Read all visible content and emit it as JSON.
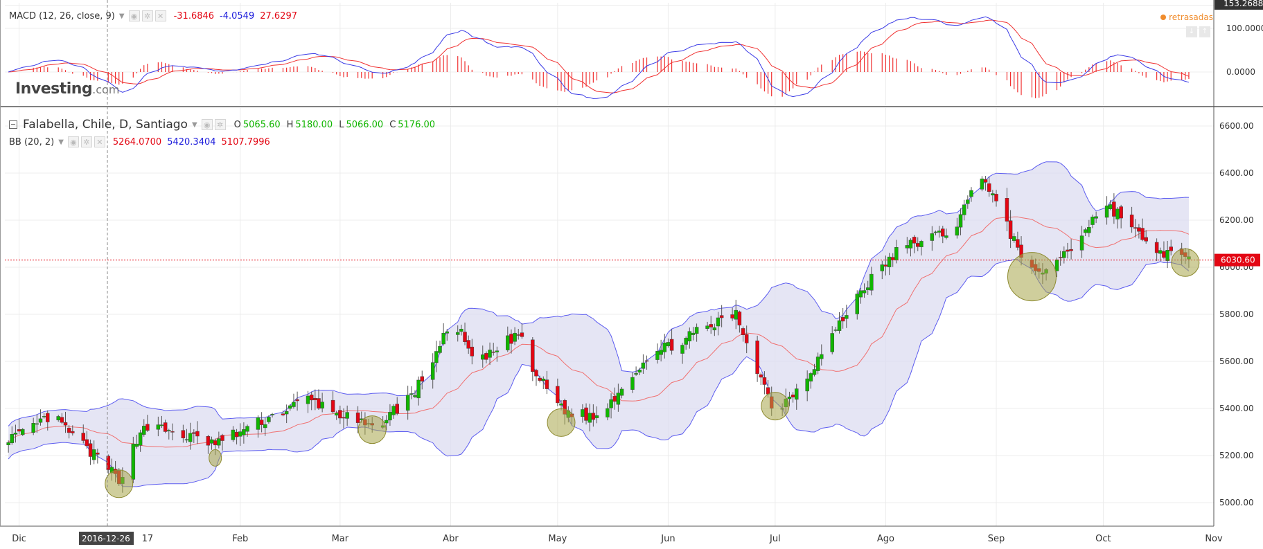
{
  "colors": {
    "up": "#11b600",
    "down": "#e30613",
    "bb_upper": "#5c5cf0",
    "bb_fill": "#dcdcf0",
    "bb_basis": "#f07070",
    "macd_line": "#3b3be6",
    "signal_line": "#f03030",
    "hist": "#f03030",
    "last_price": "#e30613",
    "grid": "#ececec"
  },
  "logo": {
    "brand": "Investing",
    "suffix": ".com"
  },
  "delayed_label": "retrasadas",
  "macd_legend": {
    "name": "MACD (12, 26, close, 9)",
    "values": [
      "-31.6846",
      "-4.0549",
      "27.6297"
    ]
  },
  "main_legend": {
    "symbol": "Falabella, Chile, D, Santiago",
    "ohlc": [
      {
        "label": "O",
        "value": "5065.60"
      },
      {
        "label": "H",
        "value": "5180.00"
      },
      {
        "label": "L",
        "value": "5066.00"
      },
      {
        "label": "C",
        "value": "5176.00"
      }
    ]
  },
  "bb_legend": {
    "name": "BB (20, 2)",
    "values": [
      "5264.0700",
      "5420.3404",
      "5107.7996"
    ]
  },
  "chart_data": {
    "type": "candlestick",
    "title": "Falabella, Chile, D, Santiago",
    "x_ticks": [
      "Dic",
      "2016-12-26",
      "17",
      "Feb",
      "Mar",
      "Abr",
      "May",
      "Jun",
      "Jul",
      "Ago",
      "Sep",
      "Oct",
      "Nov"
    ],
    "y_ticks": [
      "6600.00",
      "6400.00",
      "6200.00",
      "6000.00",
      "5800.00",
      "5600.00",
      "5400.00",
      "5200.00",
      "5000.00"
    ],
    "ylim": [
      4980,
      6620
    ],
    "last_price": "6030.60",
    "grid": true,
    "anchors": [
      {
        "x": "2016-12-01",
        "close": 5280
      },
      {
        "x": "2016-12-10",
        "close": 5370
      },
      {
        "x": "2016-12-20",
        "close": 5230
      },
      {
        "x": "2016-12-29",
        "close": 5100
      },
      {
        "x": "2017-01-05",
        "close": 5330
      },
      {
        "x": "2017-01-25",
        "close": 5250
      },
      {
        "x": "2017-02-20",
        "close": 5440
      },
      {
        "x": "2017-03-10",
        "close": 5310
      },
      {
        "x": "2017-03-22",
        "close": 5470
      },
      {
        "x": "2017-04-02",
        "close": 5780
      },
      {
        "x": "2017-04-08",
        "close": 5580
      },
      {
        "x": "2017-04-20",
        "close": 5720
      },
      {
        "x": "2017-04-24",
        "close": 5560
      },
      {
        "x": "2017-05-03",
        "close": 5390
      },
      {
        "x": "2017-05-12",
        "close": 5360
      },
      {
        "x": "2017-05-26",
        "close": 5620
      },
      {
        "x": "2017-06-20",
        "close": 5800
      },
      {
        "x": "2017-07-01",
        "close": 5380
      },
      {
        "x": "2017-07-10",
        "close": 5540
      },
      {
        "x": "2017-07-25",
        "close": 5900
      },
      {
        "x": "2017-08-05",
        "close": 6080
      },
      {
        "x": "2017-08-20",
        "close": 6160
      },
      {
        "x": "2017-08-28",
        "close": 6400
      },
      {
        "x": "2017-09-05",
        "close": 6140
      },
      {
        "x": "2017-09-12",
        "close": 5960
      },
      {
        "x": "2017-09-22",
        "close": 6080
      },
      {
        "x": "2017-10-01",
        "close": 6270
      },
      {
        "x": "2017-10-08",
        "close": 6200
      },
      {
        "x": "2017-10-13",
        "close": 6090
      },
      {
        "x": "2017-10-24",
        "close": 6030
      }
    ],
    "highlights": [
      {
        "x": "2016-12-29",
        "y": 5080
      },
      {
        "x": "2017-01-25",
        "y": 5190
      },
      {
        "x": "2017-03-10",
        "y": 5310
      },
      {
        "x": "2017-05-02",
        "y": 5340
      },
      {
        "x": "2017-07-01",
        "y": 5410
      },
      {
        "x": "2017-09-11",
        "y": 5960
      },
      {
        "x": "2017-10-24",
        "y": 6020
      }
    ],
    "macd": {
      "y_ticks": [
        "153.2688",
        "100.0000",
        "0.0000"
      ],
      "ylim": [
        -65,
        155
      ]
    }
  }
}
